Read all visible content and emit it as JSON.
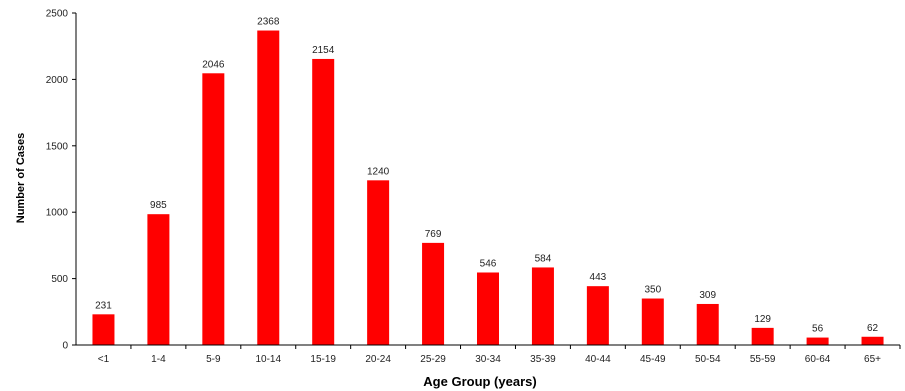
{
  "chart_data": {
    "type": "bar",
    "title": "",
    "xlabel": "Age Group (years)",
    "ylabel": "Number of Cases",
    "ylim": [
      0,
      2500
    ],
    "yticks": [
      0,
      500,
      1000,
      1500,
      2000,
      2500
    ],
    "grid": false,
    "legend": "none",
    "bar_color": "#ff0000",
    "categories": [
      "<1",
      "1-4",
      "5-9",
      "10-14",
      "15-19",
      "20-24",
      "25-29",
      "30-34",
      "35-39",
      "40-44",
      "45-49",
      "50-54",
      "55-59",
      "60-64",
      "65+"
    ],
    "values": [
      231,
      985,
      2046,
      2368,
      2154,
      1240,
      769,
      546,
      584,
      443,
      350,
      309,
      129,
      56,
      62
    ]
  }
}
